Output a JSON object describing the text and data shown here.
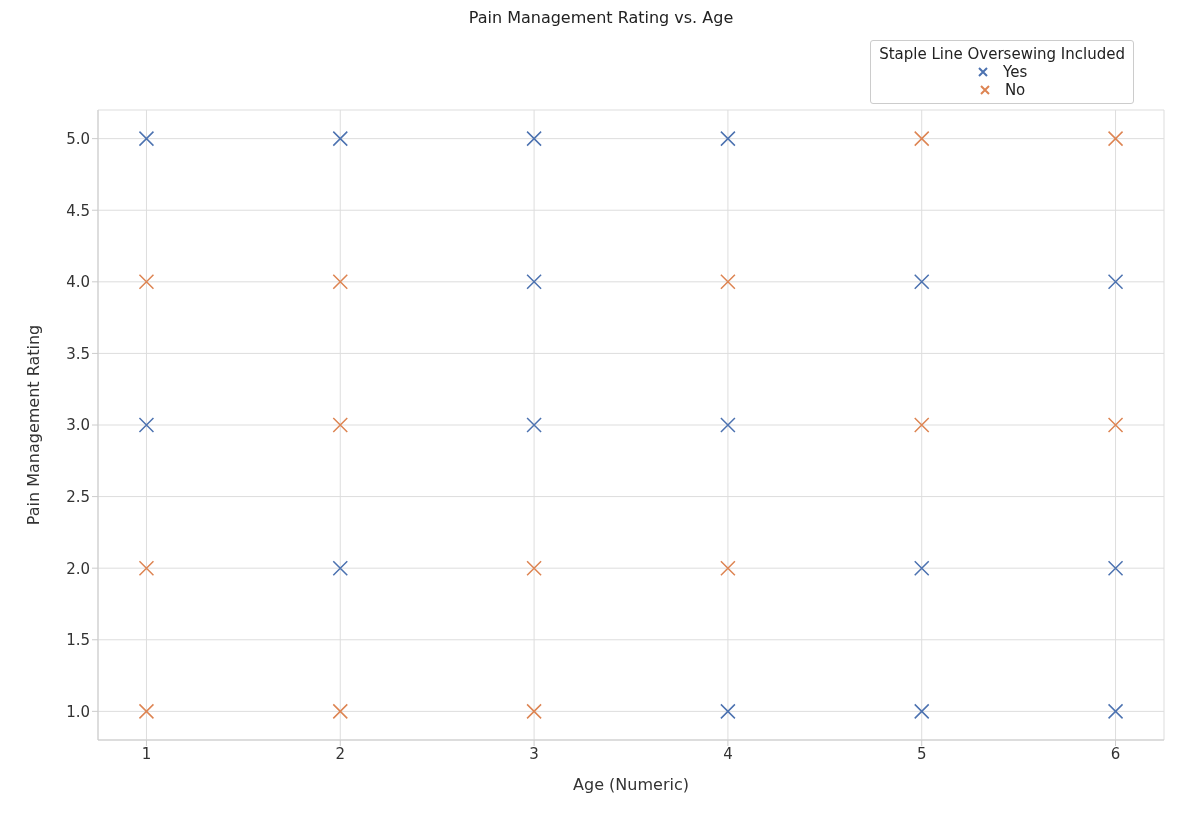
{
  "chart_data": {
    "type": "scatter",
    "title": "Pain Management Rating vs. Age",
    "xlabel": "Age (Numeric)",
    "ylabel": "Pain Management Rating",
    "legend_title": "Staple Line Oversewing Included",
    "series": [
      {
        "name": "Yes",
        "color": "#4c72b0",
        "x": [
          1,
          2,
          3,
          4,
          3,
          5,
          6,
          1,
          3,
          4,
          2,
          5,
          6,
          4,
          5,
          6
        ],
        "values": [
          5,
          5,
          5,
          5,
          4,
          4,
          4,
          3,
          3,
          3,
          2,
          2,
          2,
          1,
          1,
          1
        ]
      },
      {
        "name": "No",
        "color": "#dd8452",
        "x": [
          5,
          6,
          1,
          2,
          4,
          2,
          5,
          6,
          1,
          3,
          4,
          1,
          2,
          3
        ],
        "values": [
          5,
          5,
          4,
          4,
          4,
          3,
          3,
          3,
          2,
          2,
          2,
          1,
          1,
          1
        ]
      }
    ],
    "xlim": [
      0.75,
      6.25
    ],
    "xticks": [
      1,
      2,
      3,
      4,
      5,
      6
    ],
    "ylim": [
      0.8,
      5.2
    ],
    "yticks": [
      {
        "value": 1,
        "label": "1.0"
      },
      1.5,
      {
        "value": 2,
        "label": "2.0"
      },
      2.5,
      {
        "value": 3,
        "label": "3.0"
      },
      3.5,
      {
        "value": 4,
        "label": "4.0"
      },
      4.5,
      {
        "value": 5,
        "label": "5.0"
      }
    ],
    "grid": true,
    "legend": "top right",
    "marker": "cross"
  }
}
